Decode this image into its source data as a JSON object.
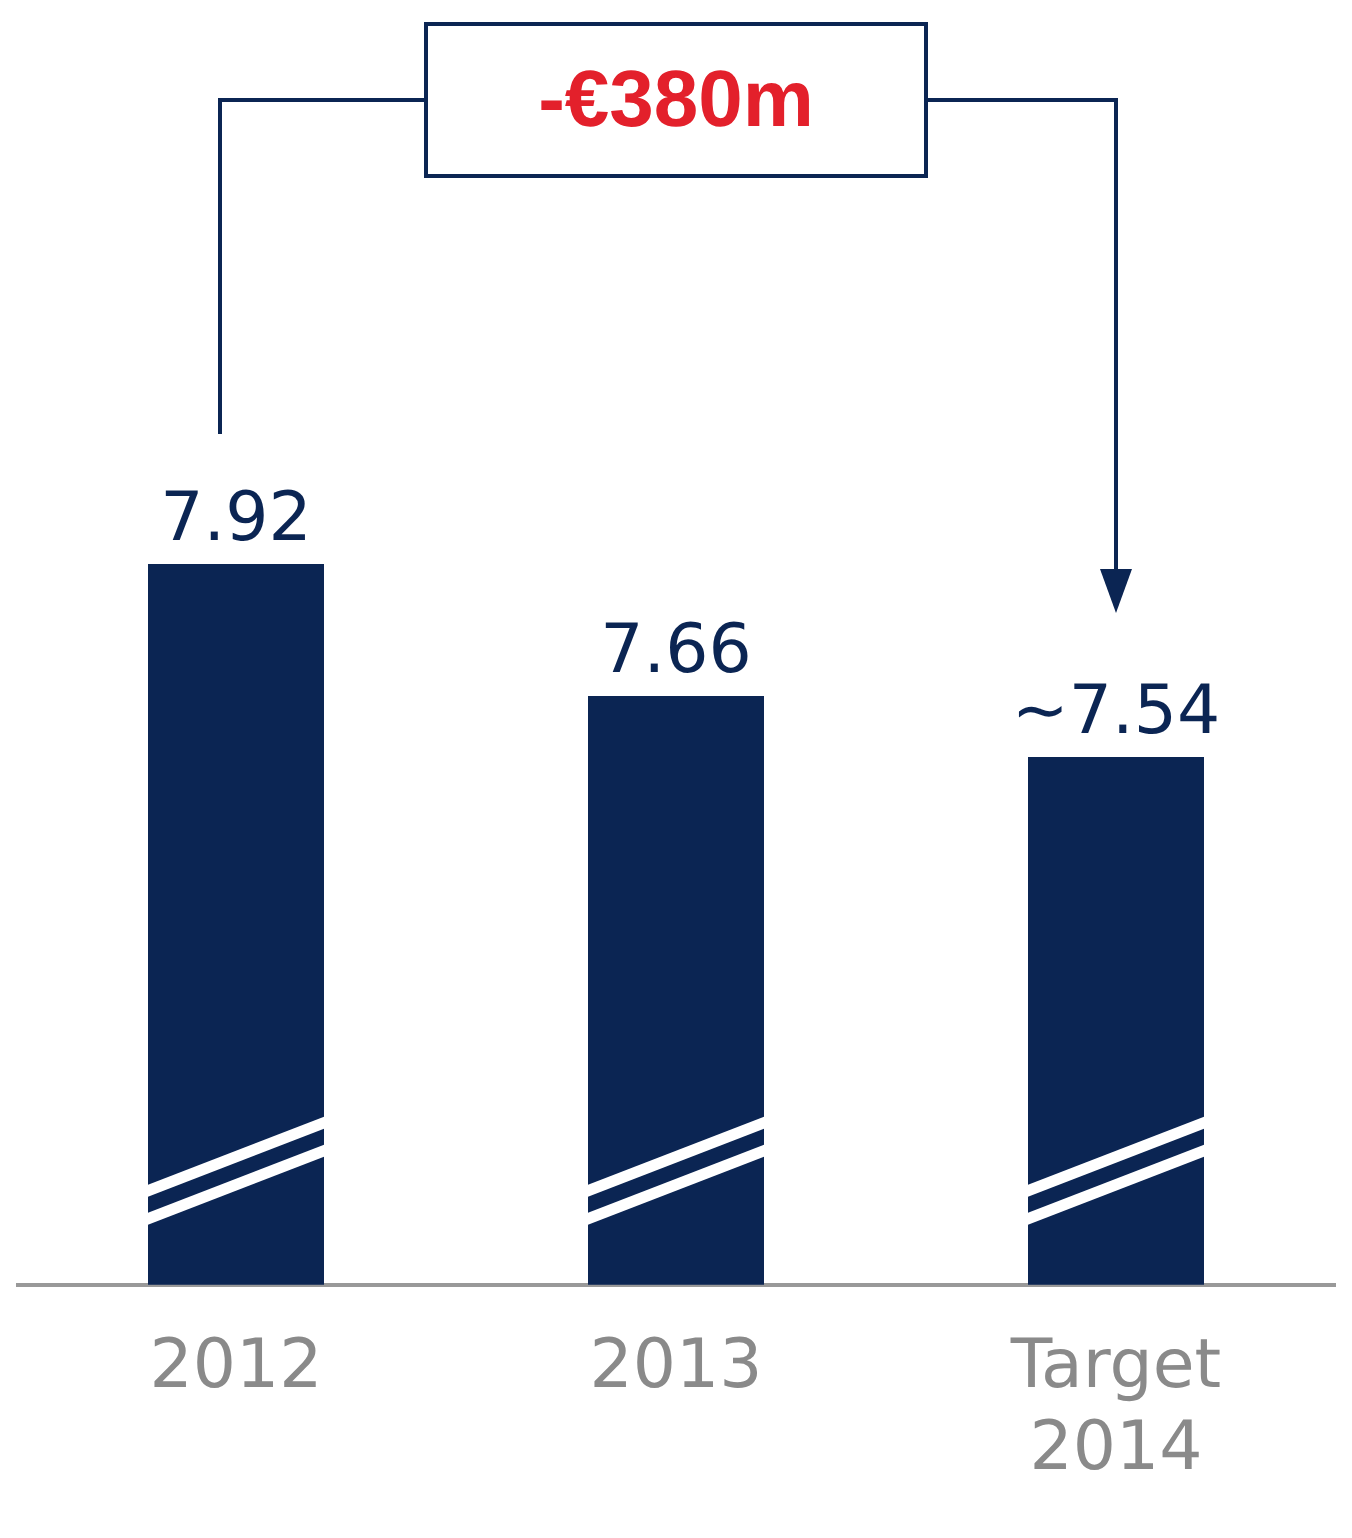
{
  "chart_data": {
    "type": "bar",
    "categories": [
      "2012",
      "2013",
      "Target 2014"
    ],
    "values": [
      7.92,
      7.66,
      7.54
    ],
    "value_labels": [
      "7.92",
      "7.66",
      "~7.54"
    ],
    "color": "#0b2553",
    "tick_labels": "x",
    "annotations": [
      "-€380m"
    ]
  }
}
